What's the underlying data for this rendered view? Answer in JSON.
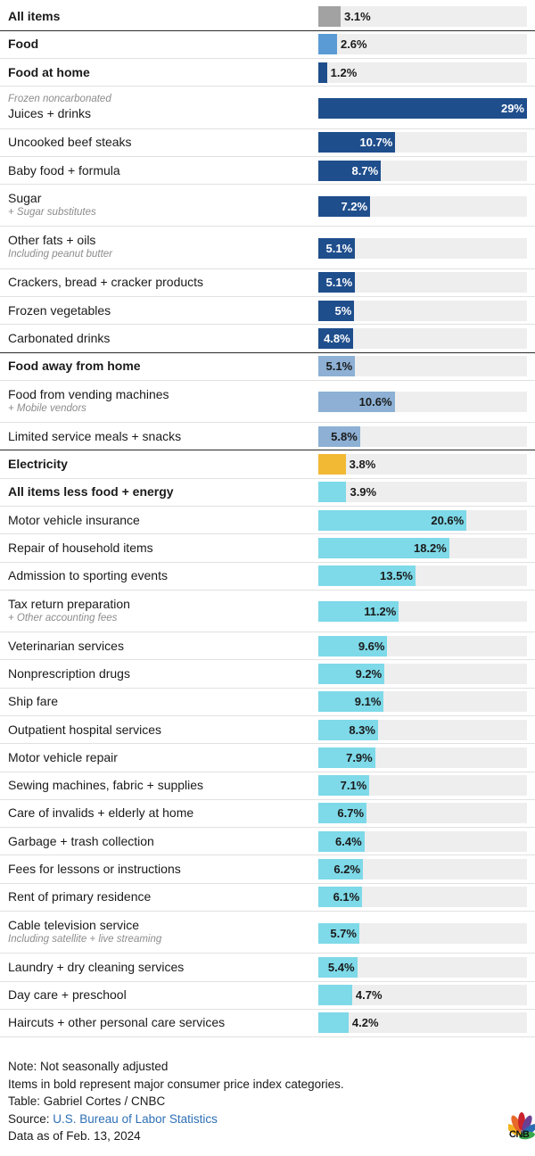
{
  "colors": {
    "overall": "#a2a2a2",
    "food": "#5b9bd5",
    "food_home": "#1f4e8c",
    "food_away": "#8db0d4",
    "energy": "#f2b935",
    "core": "#7ed9e8",
    "track": "#eeeeee"
  },
  "chart_data": {
    "type": "bar",
    "orientation": "horizontal",
    "title": "",
    "value_unit": "%",
    "xlim": [
      0,
      29
    ],
    "rows": [
      {
        "label": "All items",
        "value": 3.1,
        "value_label": "3.1%",
        "bold": true,
        "group": "overall",
        "thick_line_below": true
      },
      {
        "label": "Food",
        "value": 2.6,
        "value_label": "2.6%",
        "bold": true,
        "group": "food"
      },
      {
        "label": "Food at home",
        "value": 1.2,
        "value_label": "1.2%",
        "bold": true,
        "group": "food_home"
      },
      {
        "label": "Juices + drinks",
        "pre_label": "Frozen noncarbonated",
        "value": 29,
        "value_label": "29%",
        "bold": false,
        "group": "food_home"
      },
      {
        "label": "Uncooked beef steaks",
        "value": 10.7,
        "value_label": "10.7%",
        "bold": false,
        "group": "food_home"
      },
      {
        "label": "Baby food + formula",
        "value": 8.7,
        "value_label": "8.7%",
        "bold": false,
        "group": "food_home"
      },
      {
        "label": "Sugar",
        "sub_label": "+ Sugar substitutes",
        "value": 7.2,
        "value_label": "7.2%",
        "bold": false,
        "group": "food_home"
      },
      {
        "label": "Other fats + oils",
        "sub_label": "Including peanut butter",
        "value": 5.1,
        "value_label": "5.1%",
        "bold": false,
        "group": "food_home"
      },
      {
        "label": "Crackers, bread + cracker products",
        "value": 5.1,
        "value_label": "5.1%",
        "bold": false,
        "group": "food_home"
      },
      {
        "label": "Frozen vegetables",
        "value": 5,
        "value_label": "5%",
        "bold": false,
        "group": "food_home"
      },
      {
        "label": "Carbonated drinks",
        "value": 4.8,
        "value_label": "4.8%",
        "bold": false,
        "group": "food_home",
        "thick_line_below": true
      },
      {
        "label": "Food away from home",
        "value": 5.1,
        "value_label": "5.1%",
        "bold": true,
        "group": "food_away"
      },
      {
        "label": "Food from vending machines",
        "sub_label": "+ Mobile vendors",
        "value": 10.6,
        "value_label": "10.6%",
        "bold": false,
        "group": "food_away"
      },
      {
        "label": "Limited service meals + snacks",
        "value": 5.8,
        "value_label": "5.8%",
        "bold": false,
        "group": "food_away",
        "thick_line_below": true
      },
      {
        "label": "Electricity",
        "value": 3.8,
        "value_label": "3.8%",
        "bold": true,
        "group": "energy"
      },
      {
        "label": "All items less food + energy",
        "value": 3.9,
        "value_label": "3.9%",
        "bold": true,
        "group": "core"
      },
      {
        "label": "Motor vehicle insurance",
        "value": 20.6,
        "value_label": "20.6%",
        "bold": false,
        "group": "core"
      },
      {
        "label": "Repair of household items",
        "value": 18.2,
        "value_label": "18.2%",
        "bold": false,
        "group": "core"
      },
      {
        "label": "Admission to sporting events",
        "value": 13.5,
        "value_label": "13.5%",
        "bold": false,
        "group": "core"
      },
      {
        "label": "Tax return preparation",
        "sub_label": "+ Other accounting fees",
        "value": 11.2,
        "value_label": "11.2%",
        "bold": false,
        "group": "core"
      },
      {
        "label": "Veterinarian services",
        "value": 9.6,
        "value_label": "9.6%",
        "bold": false,
        "group": "core"
      },
      {
        "label": "Nonprescription drugs",
        "value": 9.2,
        "value_label": "9.2%",
        "bold": false,
        "group": "core"
      },
      {
        "label": "Ship fare",
        "value": 9.1,
        "value_label": "9.1%",
        "bold": false,
        "group": "core"
      },
      {
        "label": "Outpatient hospital services",
        "value": 8.3,
        "value_label": "8.3%",
        "bold": false,
        "group": "core"
      },
      {
        "label": "Motor vehicle repair",
        "value": 7.9,
        "value_label": "7.9%",
        "bold": false,
        "group": "core"
      },
      {
        "label": "Sewing machines, fabric + supplies",
        "value": 7.1,
        "value_label": "7.1%",
        "bold": false,
        "group": "core"
      },
      {
        "label": "Care of invalids + elderly at home",
        "value": 6.7,
        "value_label": "6.7%",
        "bold": false,
        "group": "core"
      },
      {
        "label": "Garbage + trash collection",
        "value": 6.4,
        "value_label": "6.4%",
        "bold": false,
        "group": "core"
      },
      {
        "label": "Fees for lessons or instructions",
        "value": 6.2,
        "value_label": "6.2%",
        "bold": false,
        "group": "core"
      },
      {
        "label": "Rent of primary residence",
        "value": 6.1,
        "value_label": "6.1%",
        "bold": false,
        "group": "core"
      },
      {
        "label": "Cable television service",
        "sub_label": "Including satellite + live streaming",
        "value": 5.7,
        "value_label": "5.7%",
        "bold": false,
        "group": "core"
      },
      {
        "label": "Laundry + dry cleaning services",
        "value": 5.4,
        "value_label": "5.4%",
        "bold": false,
        "group": "core"
      },
      {
        "label": "Day care + preschool",
        "value": 4.7,
        "value_label": "4.7%",
        "bold": false,
        "group": "core"
      },
      {
        "label": "Haircuts + other personal care services",
        "value": 4.2,
        "value_label": "4.2%",
        "bold": false,
        "group": "core"
      }
    ]
  },
  "footer": {
    "note": "Note: Not seasonally adjusted",
    "bold_note": "Items in bold represent major consumer price index categories.",
    "table_credit": "Table: Gabriel Cortes / CNBC",
    "source_prefix": "Source: ",
    "source_link": "U.S. Bureau of Labor Statistics",
    "data_date": "Data as of Feb. 13, 2024"
  },
  "logo": {
    "text": "CNB",
    "icon": "nbc-peacock-icon"
  }
}
